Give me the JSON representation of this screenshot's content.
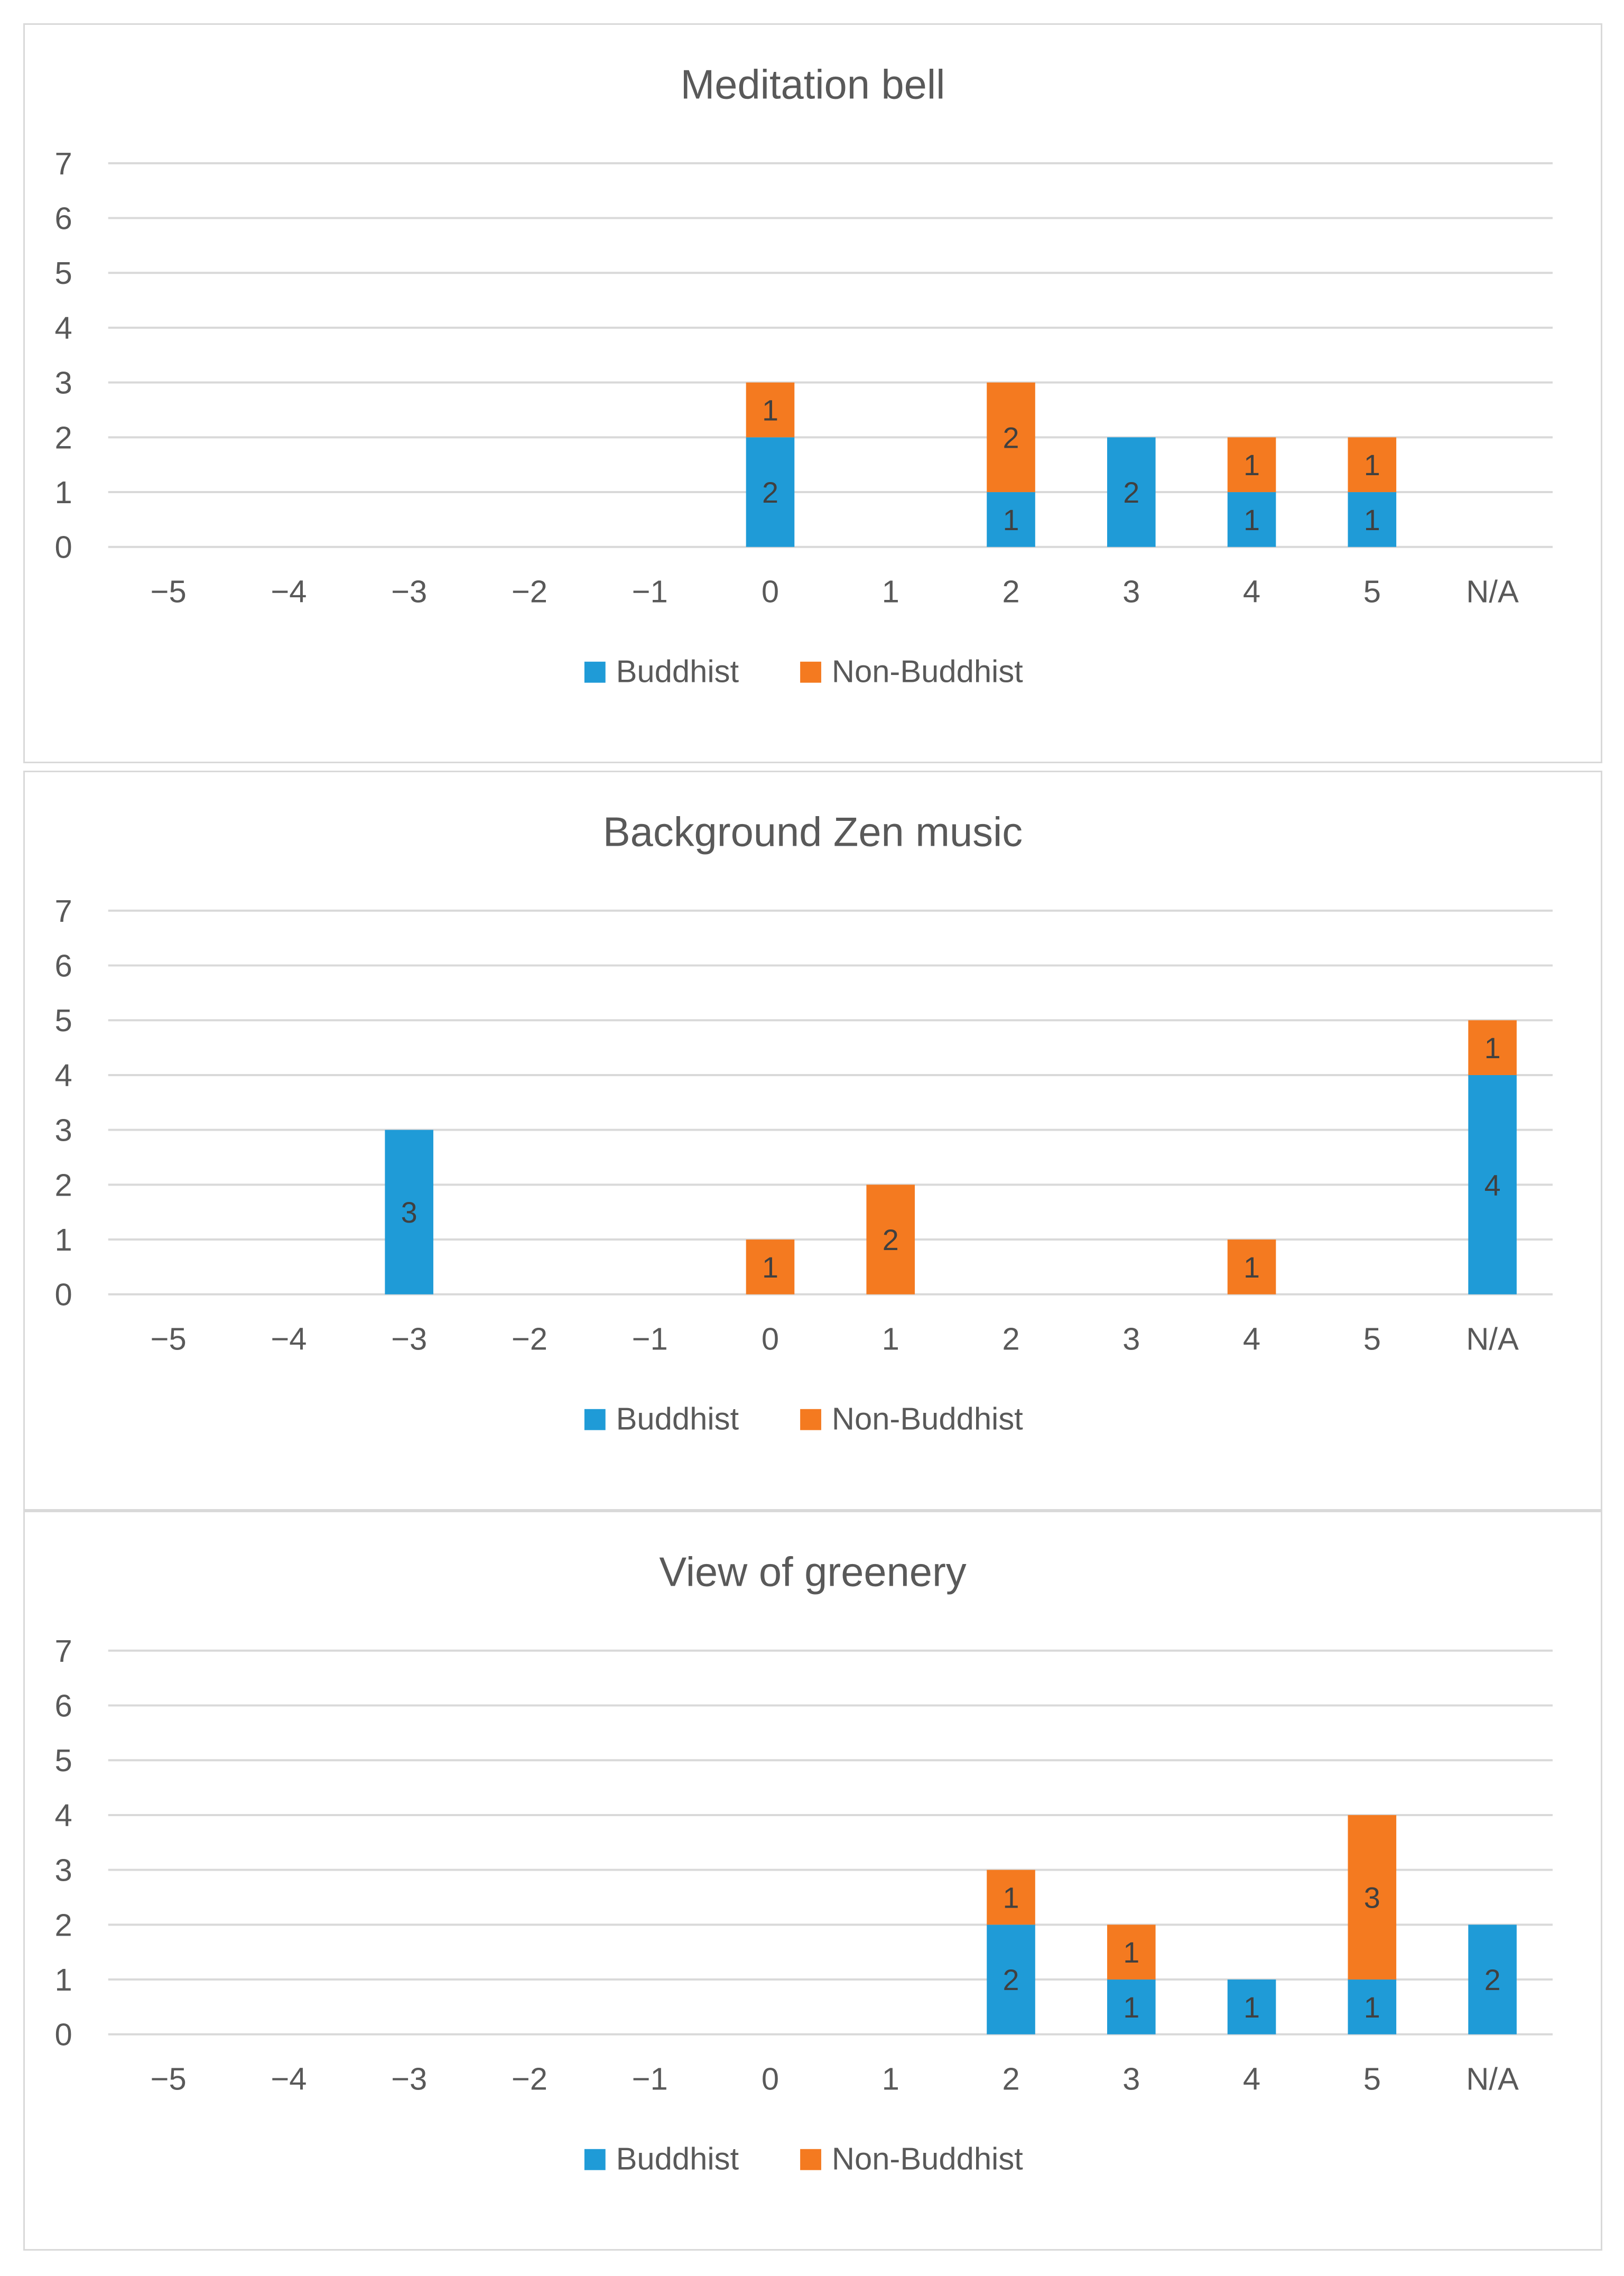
{
  "colors": {
    "buddhist": "#1F9BD7",
    "non_buddhist": "#F47A20",
    "grid": "#d9d9d9",
    "text": "#595959"
  },
  "chart_data": [
    {
      "type": "bar",
      "stacked": true,
      "title": "Meditation bell",
      "categories": [
        "−5",
        "−4",
        "−3",
        "−2",
        "−1",
        "0",
        "1",
        "2",
        "3",
        "4",
        "5",
        "N/A"
      ],
      "yticks": [
        "0",
        "1",
        "2",
        "3",
        "4",
        "5",
        "6",
        "7"
      ],
      "ylim": [
        0,
        7
      ],
      "grid": true,
      "legend_position": "bottom",
      "series": [
        {
          "name": "Buddhist",
          "values": [
            0,
            0,
            0,
            0,
            0,
            2,
            0,
            1,
            2,
            1,
            1,
            0
          ]
        },
        {
          "name": "Non-Buddhist",
          "values": [
            0,
            0,
            0,
            0,
            0,
            1,
            0,
            2,
            0,
            1,
            1,
            0
          ]
        }
      ]
    },
    {
      "type": "bar",
      "stacked": true,
      "title": "Background Zen music",
      "categories": [
        "−5",
        "−4",
        "−3",
        "−2",
        "−1",
        "0",
        "1",
        "2",
        "3",
        "4",
        "5",
        "N/A"
      ],
      "yticks": [
        "0",
        "1",
        "2",
        "3",
        "4",
        "5",
        "6",
        "7"
      ],
      "ylim": [
        0,
        7
      ],
      "grid": true,
      "legend_position": "bottom",
      "series": [
        {
          "name": "Buddhist",
          "values": [
            0,
            0,
            3,
            0,
            0,
            0,
            0,
            0,
            0,
            0,
            0,
            4
          ]
        },
        {
          "name": "Non-Buddhist",
          "values": [
            0,
            0,
            0,
            0,
            0,
            1,
            2,
            0,
            0,
            1,
            0,
            1
          ]
        }
      ]
    },
    {
      "type": "bar",
      "stacked": true,
      "title": "View of greenery",
      "categories": [
        "−5",
        "−4",
        "−3",
        "−2",
        "−1",
        "0",
        "1",
        "2",
        "3",
        "4",
        "5",
        "N/A"
      ],
      "yticks": [
        "0",
        "1",
        "2",
        "3",
        "4",
        "5",
        "6",
        "7"
      ],
      "ylim": [
        0,
        7
      ],
      "grid": true,
      "legend_position": "bottom",
      "series": [
        {
          "name": "Buddhist",
          "values": [
            0,
            0,
            0,
            0,
            0,
            0,
            0,
            2,
            1,
            1,
            1,
            2
          ]
        },
        {
          "name": "Non-Buddhist",
          "values": [
            0,
            0,
            0,
            0,
            0,
            0,
            0,
            1,
            1,
            0,
            3,
            0
          ]
        }
      ]
    }
  ]
}
